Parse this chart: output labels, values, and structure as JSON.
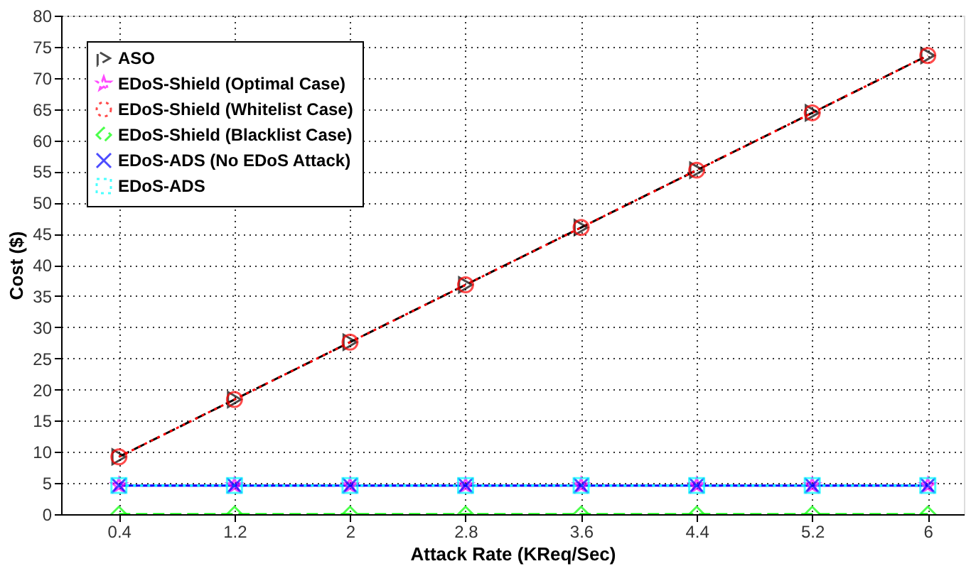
{
  "chart_data": {
    "type": "line",
    "xlabel": "Attack Rate (KReq/Sec)",
    "ylabel": "Cost ($)",
    "x": [
      0.4,
      1.2,
      2,
      2.8,
      3.6,
      4.4,
      5.2,
      6
    ],
    "series": [
      {
        "name": "ASO",
        "color": "#000000",
        "marker": "triangle",
        "line_style": "dashed",
        "values": [
          9.2,
          18.4,
          27.6,
          36.8,
          46,
          55.2,
          64.4,
          73.6
        ]
      },
      {
        "name": "EDoS-Shield (Optimal Case)",
        "color": "#ff00ff",
        "marker": "star",
        "line_style": "dashdot",
        "values": [
          4.6,
          4.6,
          4.6,
          4.6,
          4.6,
          4.6,
          4.6,
          4.6
        ]
      },
      {
        "name": "EDoS-Shield (Whitelist Case)",
        "color": "#ff0000",
        "marker": "circle",
        "line_style": "dotted",
        "values": [
          9.2,
          18.4,
          27.6,
          36.8,
          46,
          55.2,
          64.4,
          73.6
        ]
      },
      {
        "name": "EDoS-Shield (Blacklist Case)",
        "color": "#00ff00",
        "marker": "diamond",
        "line_style": "dashed",
        "values": [
          0,
          0,
          0,
          0,
          0,
          0,
          0,
          0
        ]
      },
      {
        "name": "EDoS-ADS (No EDoS Attack)",
        "color": "#0000ff",
        "marker": "cross",
        "line_style": "solid",
        "values": [
          4.6,
          4.6,
          4.6,
          4.6,
          4.6,
          4.6,
          4.6,
          4.6
        ]
      },
      {
        "name": "EDoS-ADS",
        "color": "#00ffff",
        "marker": "square",
        "line_style": "dotted",
        "values": [
          4.6,
          4.6,
          4.6,
          4.6,
          4.6,
          4.6,
          4.6,
          4.6
        ]
      }
    ],
    "xlim": [
      0,
      6.25
    ],
    "xticks": [
      0.4,
      1.2,
      2,
      2.8,
      3.6,
      4.4,
      5.2,
      6
    ],
    "ylim": [
      0,
      80
    ],
    "yticks": [
      0,
      5,
      10,
      15,
      20,
      25,
      30,
      35,
      40,
      45,
      50,
      55,
      60,
      65,
      70,
      75,
      80
    ],
    "grid": true,
    "legend": "top left"
  }
}
